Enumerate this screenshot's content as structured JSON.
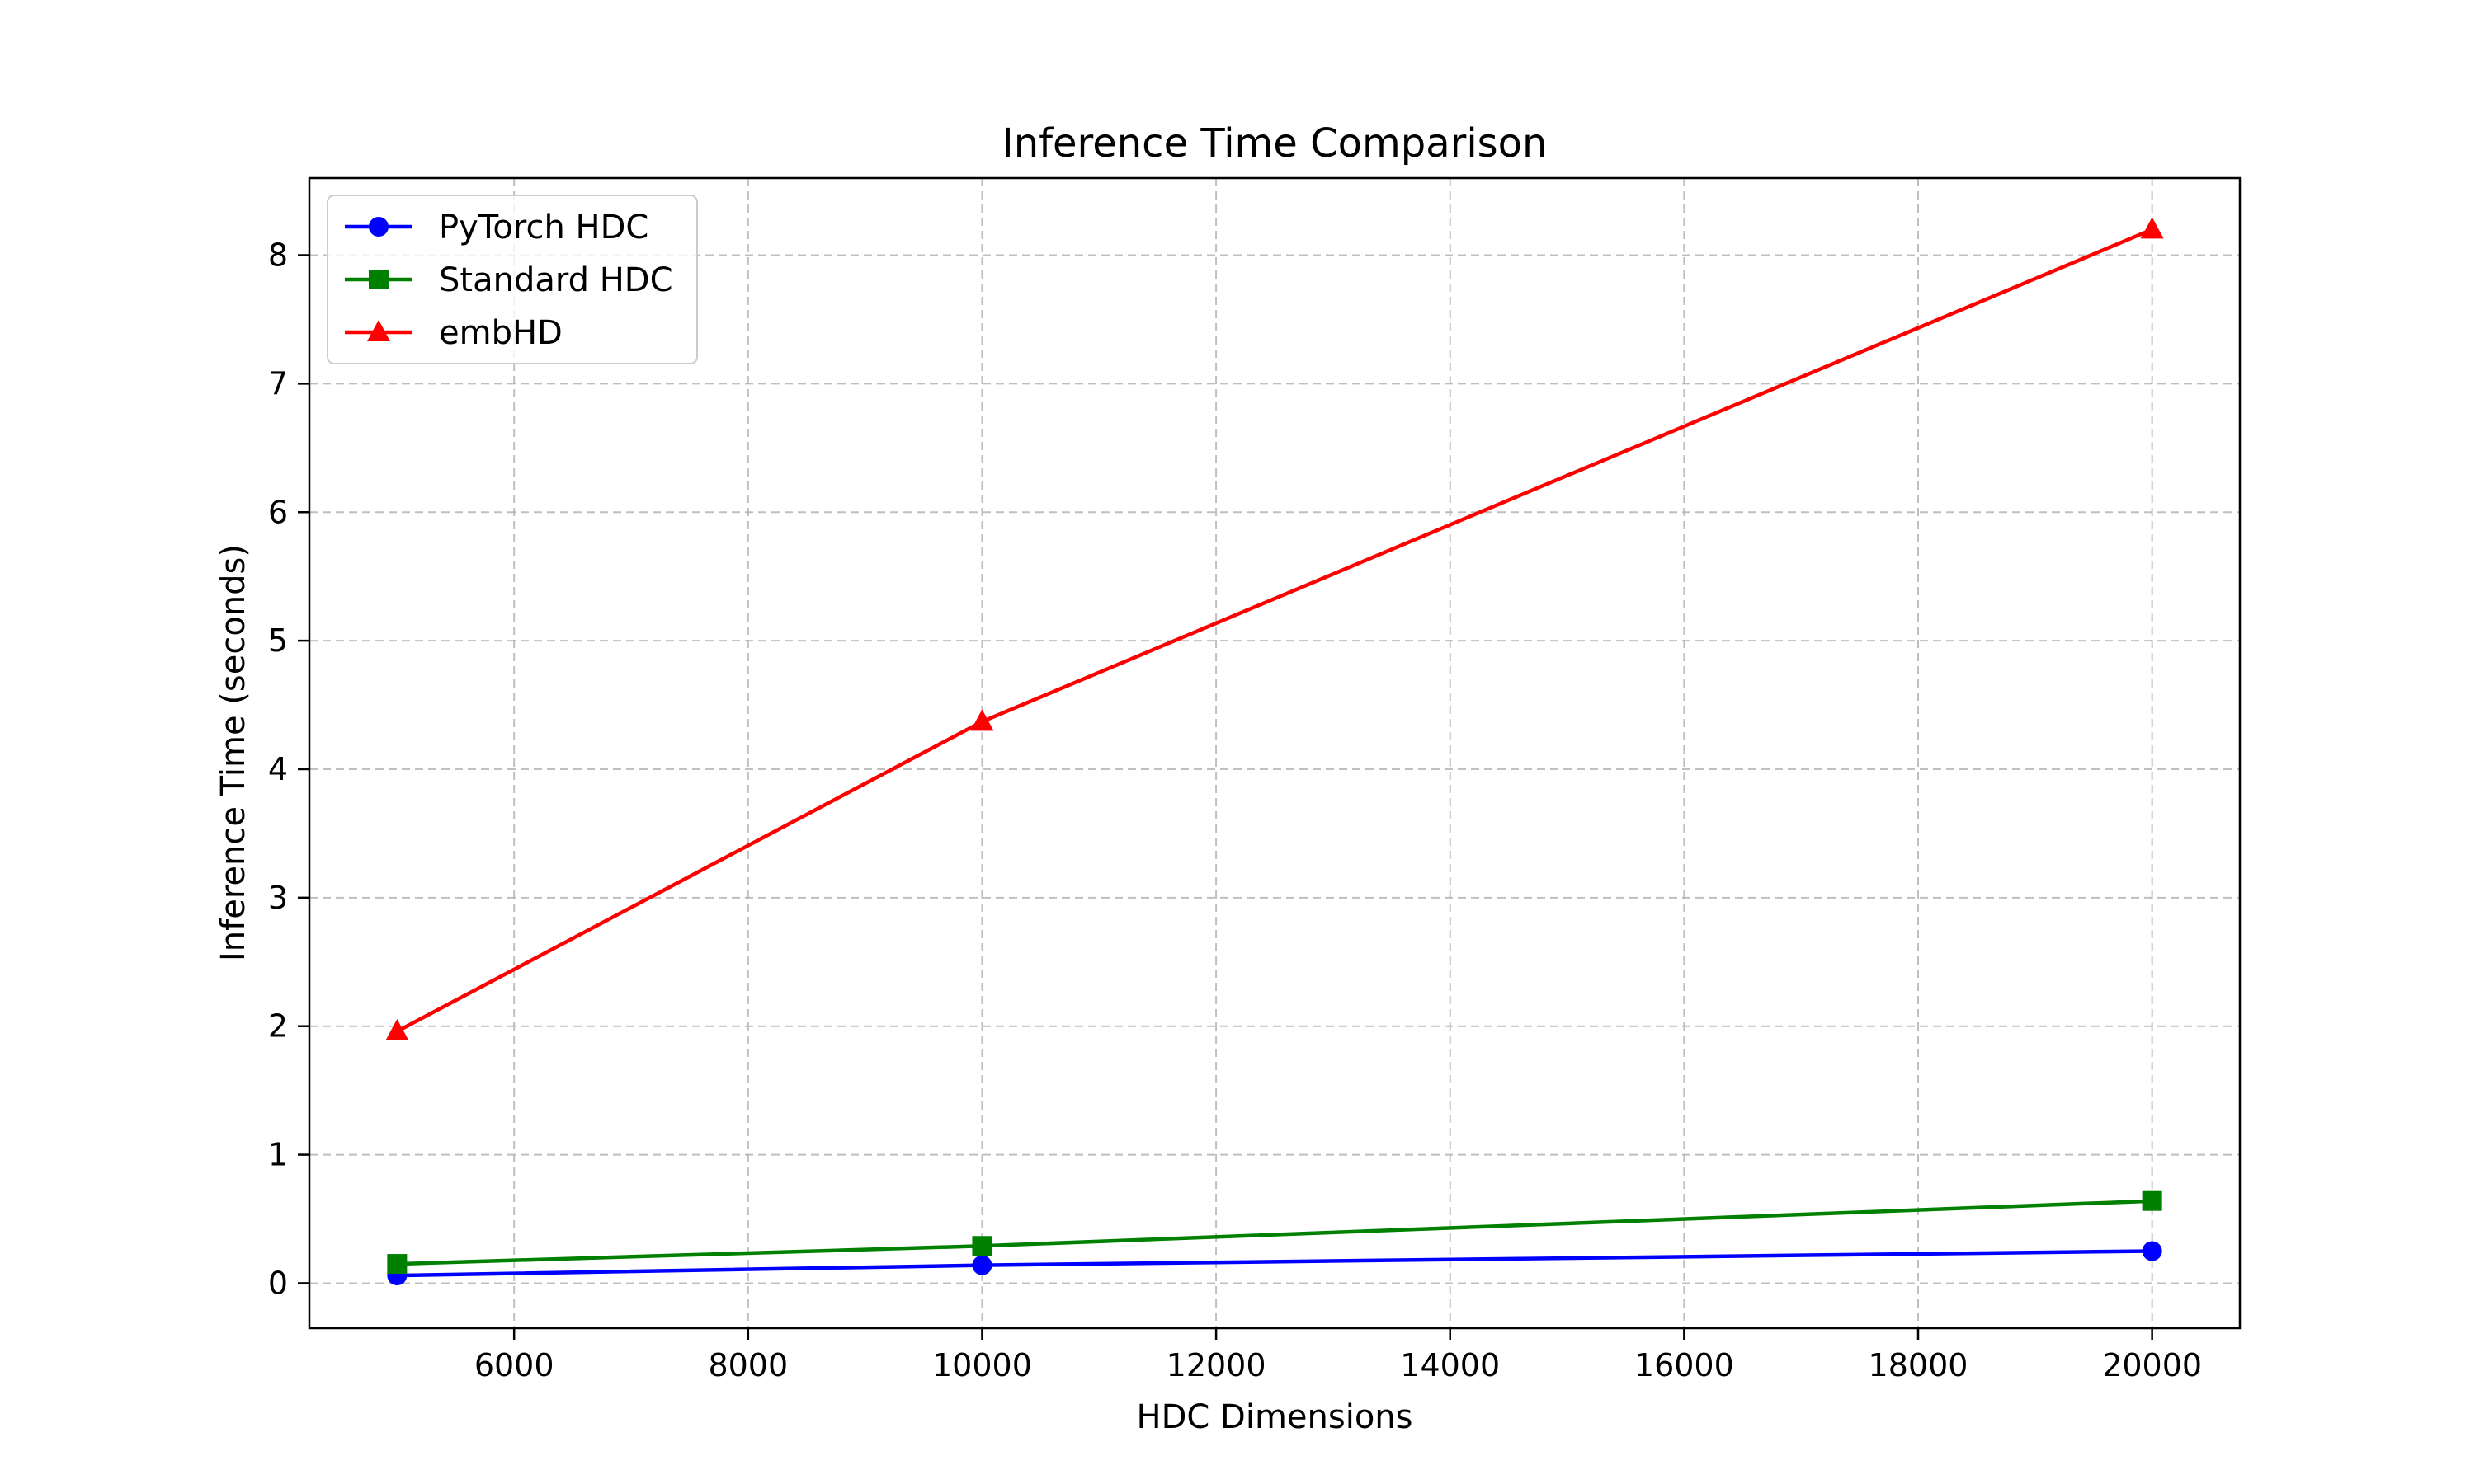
{
  "chart_data": {
    "type": "line",
    "title": "Inference Time Comparison",
    "xlabel": "HDC Dimensions",
    "ylabel": "Inference Time (seconds)",
    "x": [
      5000,
      10000,
      20000
    ],
    "xlim": [
      4250,
      20750
    ],
    "ylim": [
      -0.35,
      8.6
    ],
    "xticks": [
      6000,
      8000,
      10000,
      12000,
      14000,
      16000,
      18000,
      20000
    ],
    "yticks": [
      0,
      1,
      2,
      3,
      4,
      5,
      6,
      7,
      8
    ],
    "grid": true,
    "legend_position": "top-left",
    "series": [
      {
        "name": "PyTorch HDC",
        "color": "#0000ff",
        "marker": "circle",
        "values": [
          0.06,
          0.14,
          0.25
        ]
      },
      {
        "name": "Standard HDC",
        "color": "#008000",
        "marker": "square",
        "values": [
          0.15,
          0.29,
          0.64
        ]
      },
      {
        "name": "embHD",
        "color": "#ff0000",
        "marker": "triangle",
        "values": [
          1.96,
          4.37,
          8.2
        ]
      }
    ]
  }
}
